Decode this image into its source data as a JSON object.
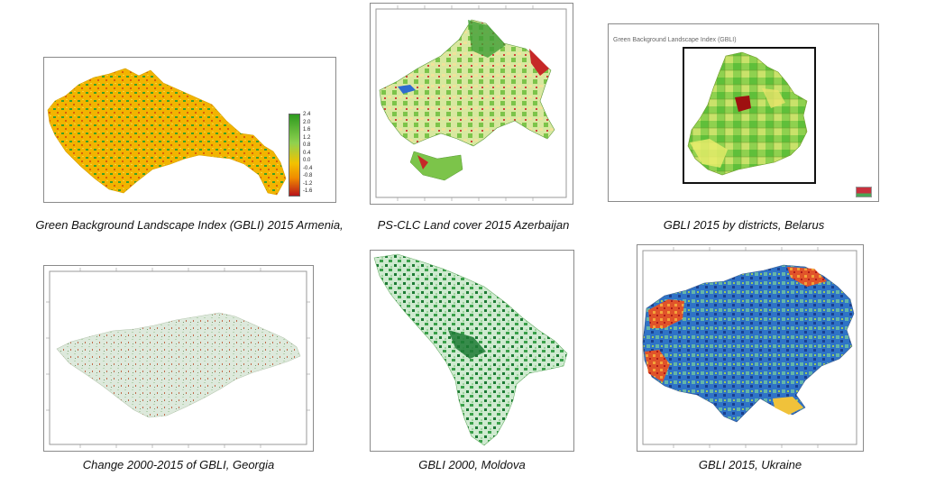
{
  "figures": [
    {
      "caption": "Green Background Landscape Index (GBLI) 2015 Armenia,",
      "legend_ticks": [
        "2.4",
        "2.0",
        "1.6",
        "1.2",
        "0.8",
        "0.4",
        "0.0",
        "-0.4",
        "-0.8",
        "-1.2",
        "-1.6"
      ]
    },
    {
      "caption": "PS-CLC Land cover 2015 Azerbaijan"
    },
    {
      "caption": "GBLI 2015 by districts, Belarus",
      "inner_title": "Green Background Landscape Index (GBLI)"
    },
    {
      "caption": "Change 2000-2015 of GBLI, Georgia"
    },
    {
      "caption": "GBLI 2000, Moldova"
    },
    {
      "caption": "GBLI 2015, Ukraine"
    }
  ],
  "colors": {
    "green_dark": "#2e8b2e",
    "green_light": "#8fd14f",
    "yellow": "#f2c200",
    "orange": "#f08c00",
    "red": "#c0141a",
    "blue": "#1f5fbf"
  }
}
